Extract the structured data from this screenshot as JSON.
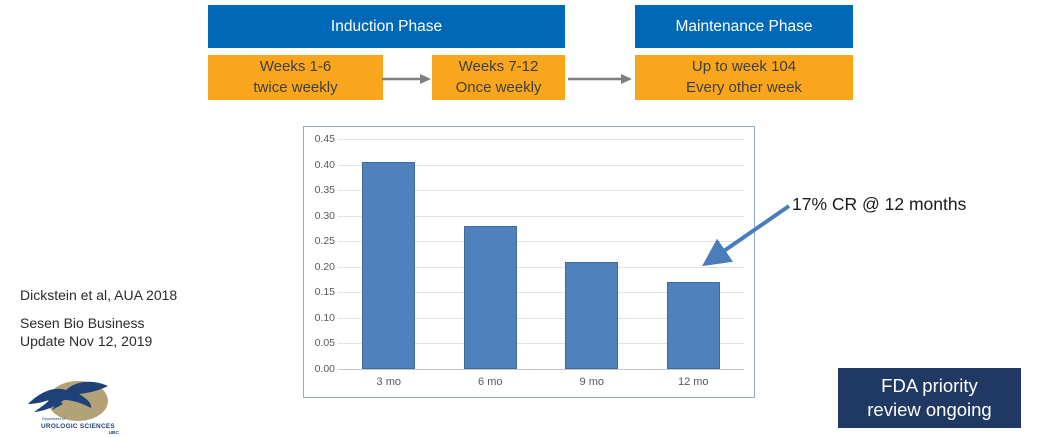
{
  "phase_flow": {
    "induction_label": "Induction Phase",
    "maintenance_label": "Maintenance Phase",
    "steps": [
      {
        "line1": "Weeks 1-6",
        "line2": "twice weekly"
      },
      {
        "line1": "Weeks 7-12",
        "line2": "Once weekly"
      },
      {
        "line1": "Up to week 104",
        "line2": "Every other week"
      }
    ]
  },
  "chart_data": {
    "type": "bar",
    "categories": [
      "3 mo",
      "6 mo",
      "9 mo",
      "12 mo"
    ],
    "values": [
      0.405,
      0.28,
      0.21,
      0.17
    ],
    "title": "",
    "xlabel": "",
    "ylabel": "",
    "ylim": [
      0,
      0.45
    ],
    "ytick_step": 0.05,
    "ytick_labels": [
      "0.00",
      "0.05",
      "0.10",
      "0.15",
      "0.20",
      "0.25",
      "0.30",
      "0.35",
      "0.40",
      "0.45"
    ],
    "grid": true,
    "legend": "none",
    "bar_color": "#4F81BD",
    "bar_border_color": "#40699C"
  },
  "annotation": {
    "text": "17% CR @ 12 months"
  },
  "citations": {
    "line1": "Dickstein et al, AUA 2018",
    "line2": "Sesen Bio Business",
    "line3": "Update Nov 12, 2019"
  },
  "logo": {
    "dept": "Department of",
    "org": "UROLOGIC SCIENCES",
    "sub": "UBC"
  },
  "footer": {
    "fda_line1": "FDA priority",
    "fda_line2": "review ongoing"
  },
  "colors": {
    "phase_header_bg": "#0069B7",
    "step_bg": "#F9A61C",
    "bar_fill": "#4F81BD",
    "annotation_arrow": "#4A7EBB",
    "flow_arrow": "#7F7F7F",
    "fda_bg": "#1F3864",
    "chart_border": "#91ADC6",
    "logo_circle": "#B4A277",
    "logo_navy": "#1E4178"
  }
}
